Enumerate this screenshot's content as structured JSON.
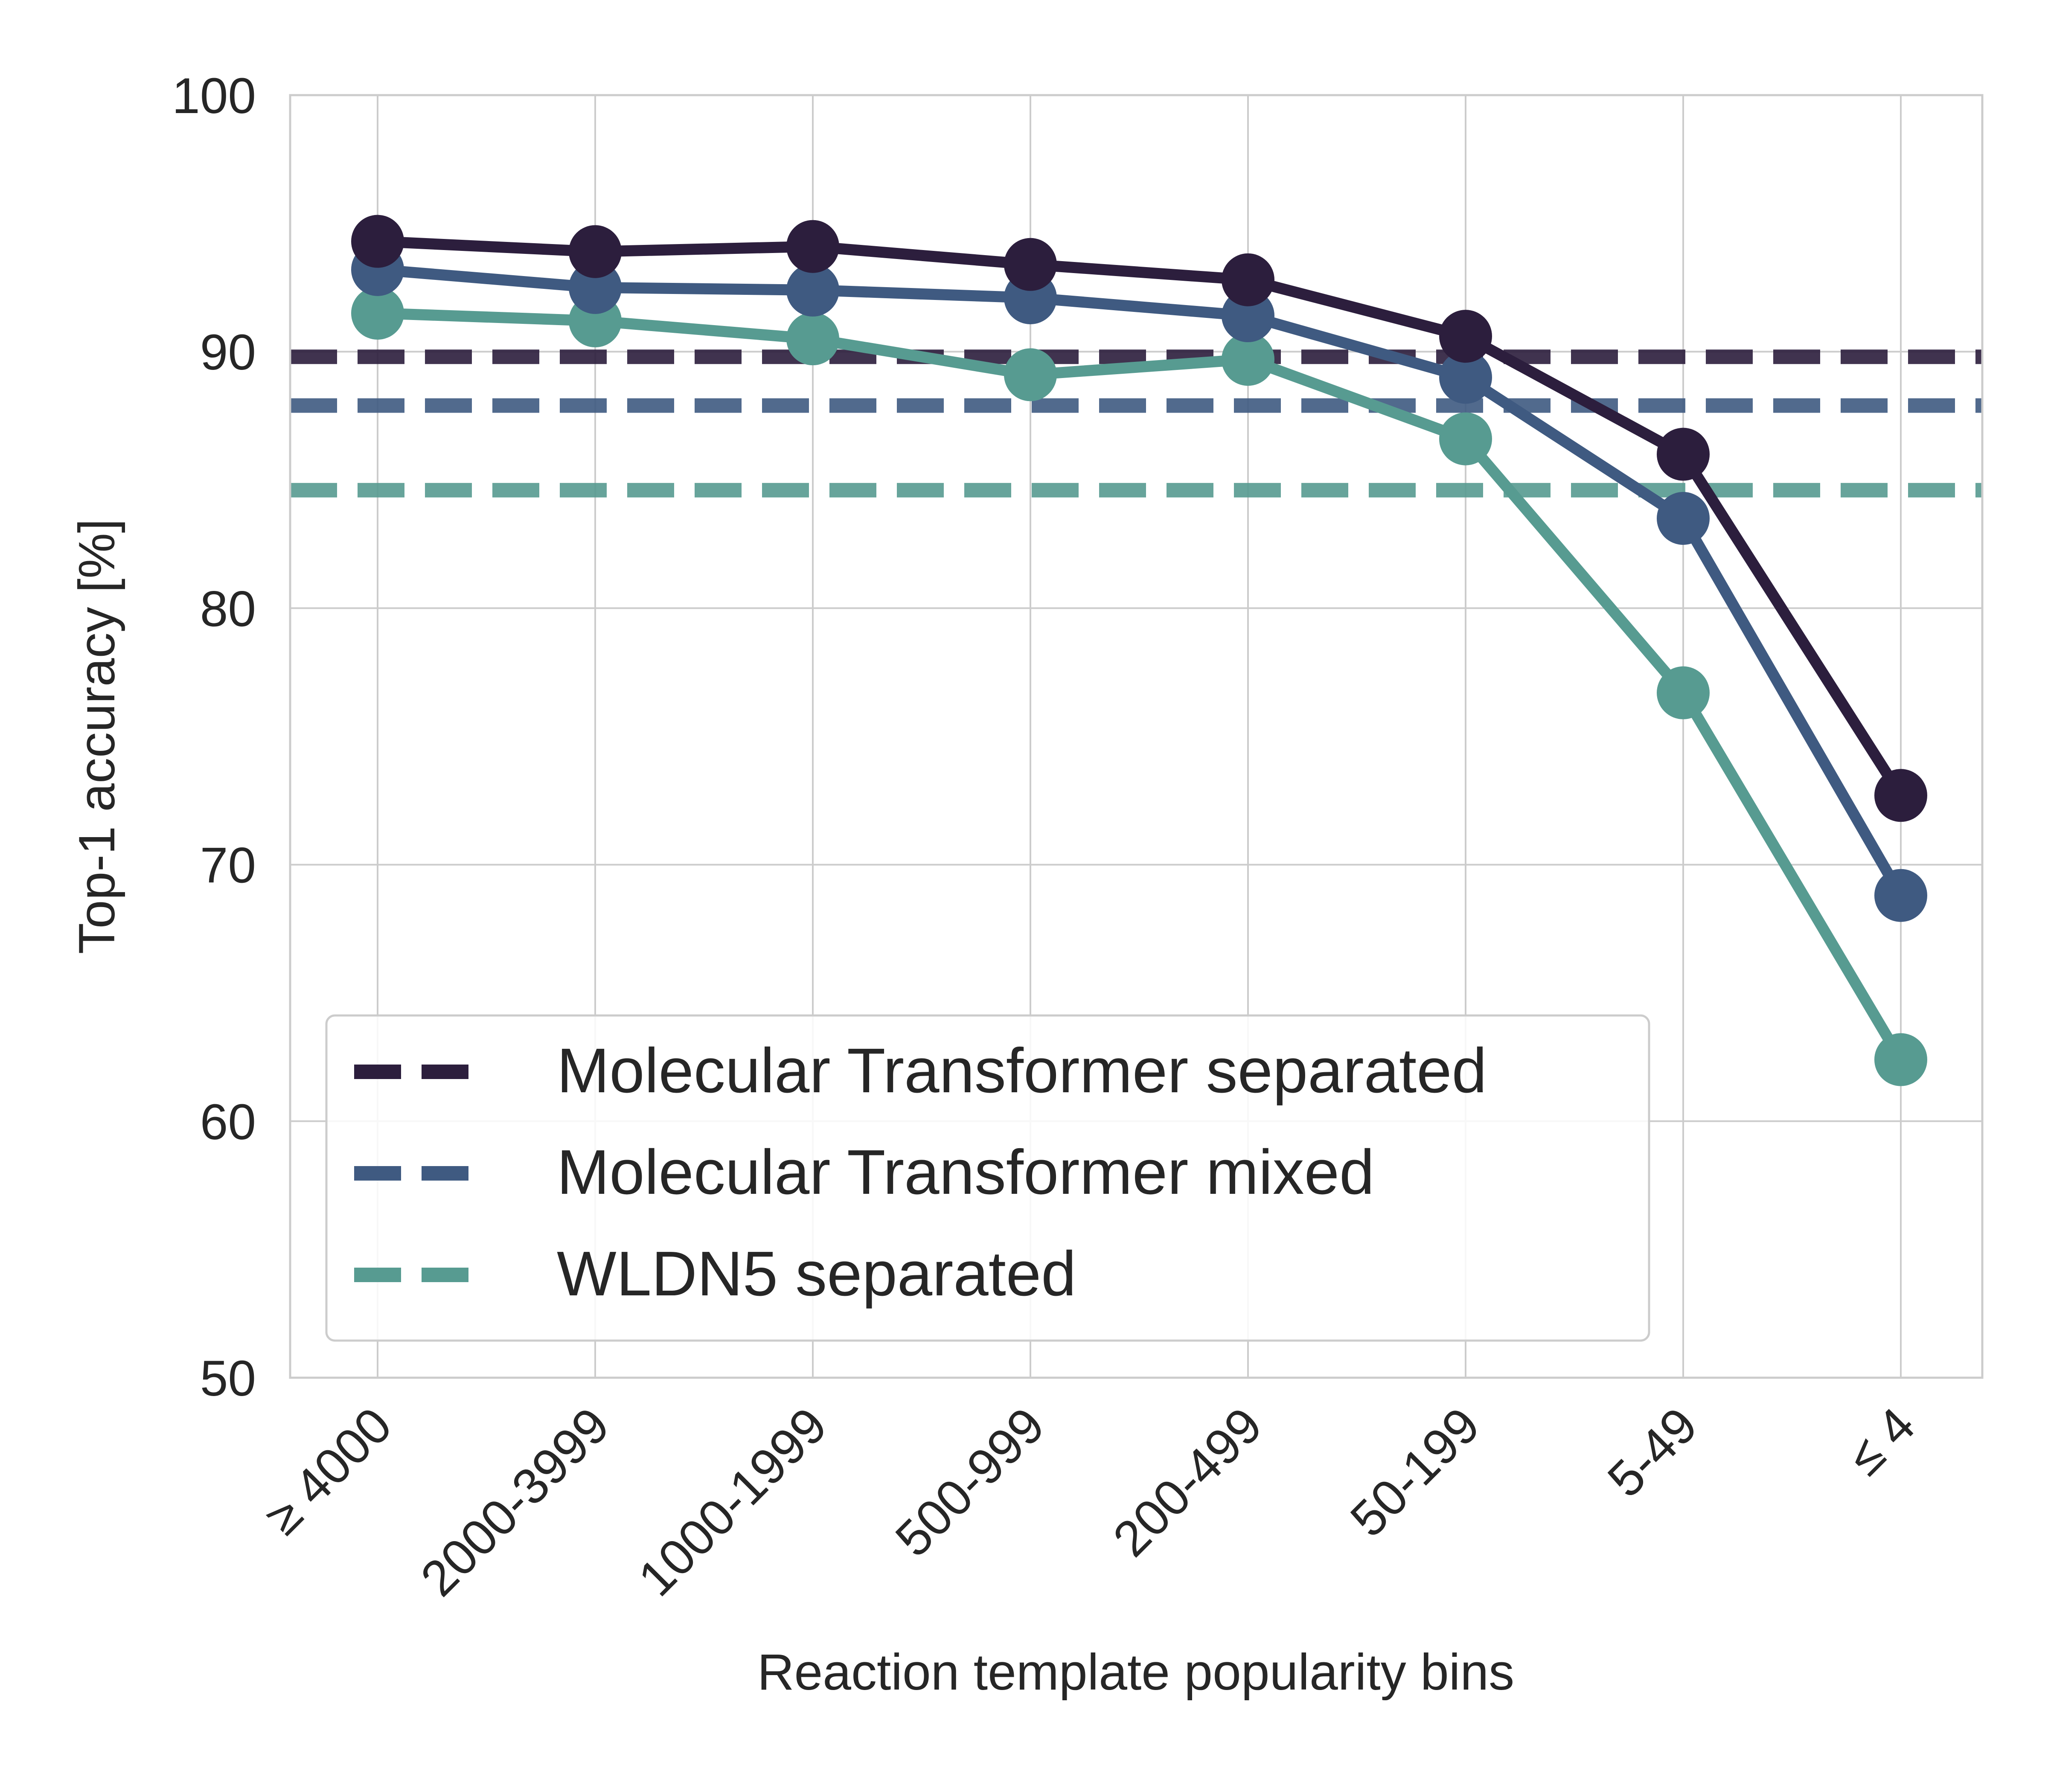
{
  "chart_data": {
    "type": "line",
    "title": "",
    "xlabel": "Reaction template popularity bins",
    "ylabel": "Top-1 accuracy [%]",
    "ylim": [
      50,
      100
    ],
    "yticks": [
      50,
      60,
      70,
      80,
      90,
      100
    ],
    "grid": true,
    "legend_position": "lower-left",
    "categories": [
      "≥ 4000",
      "2000-3999",
      "1000-1999",
      "500-999",
      "200-499",
      "50-199",
      "5-49",
      "≤ 4"
    ],
    "series": [
      {
        "name": "Molecular Transformer separated",
        "color": "#2c1e3d",
        "values": [
          94.3,
          93.9,
          94.1,
          93.4,
          92.8,
          90.6,
          86.0,
          72.7
        ],
        "baseline": 89.8
      },
      {
        "name": "Molecular Transformer mixed",
        "color": "#3f5a81",
        "values": [
          93.2,
          92.5,
          92.4,
          92.1,
          91.4,
          89.0,
          83.5,
          68.8
        ],
        "baseline": 87.9
      },
      {
        "name": "WLDN5 separated",
        "color": "#579b91",
        "values": [
          91.5,
          91.2,
          90.5,
          89.1,
          89.7,
          86.6,
          76.7,
          62.4
        ],
        "baseline": 84.6
      }
    ]
  }
}
